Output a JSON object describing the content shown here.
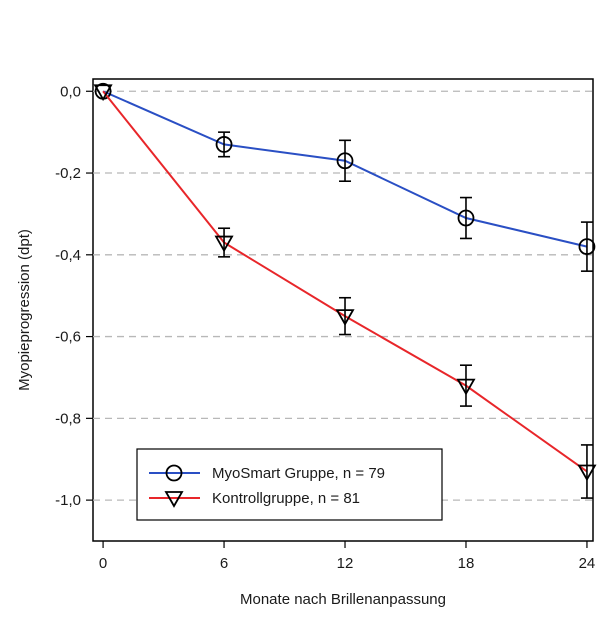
{
  "chart_data": {
    "type": "line",
    "title": "",
    "xlabel": "Monate nach Brillenanpassung",
    "ylabel": "Myopieprogression (dpt)",
    "x": [
      0,
      6,
      12,
      18,
      24
    ],
    "x_ticks": [
      "0",
      "6",
      "12",
      "18",
      "24"
    ],
    "y_ticks": [
      "0,0",
      "-0,2",
      "-0,4",
      "-0,6",
      "-0,8",
      "-1,0"
    ],
    "y_tick_values": [
      0.0,
      -0.2,
      -0.4,
      -0.6,
      -0.8,
      -1.0
    ],
    "xlim": [
      -0.5,
      24.3
    ],
    "ylim": [
      -1.1,
      0.03
    ],
    "grid": "horizontal dashed",
    "legend_position": "bottom-left",
    "series": [
      {
        "name": "MyoSmart Gruppe, n = 79",
        "color": "#2a4fc4",
        "marker": "circle",
        "values": [
          0.0,
          -0.13,
          -0.17,
          -0.31,
          -0.38
        ],
        "error": [
          0.0,
          0.03,
          0.05,
          0.05,
          0.06
        ]
      },
      {
        "name": "Kontrollgruppe, n = 81",
        "color": "#e8262a",
        "marker": "triangle-down",
        "values": [
          0.0,
          -0.37,
          -0.55,
          -0.72,
          -0.93
        ],
        "error": [
          0.0,
          0.035,
          0.045,
          0.05,
          0.065
        ]
      }
    ]
  }
}
